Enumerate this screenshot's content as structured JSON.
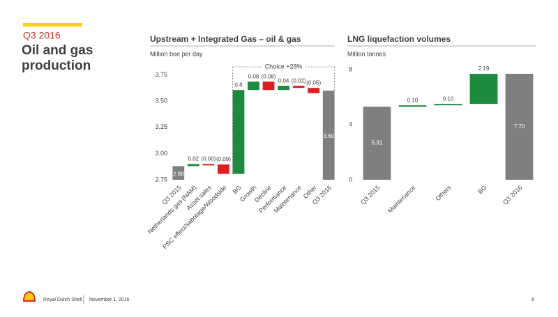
{
  "header": {
    "kicker": "Q3 2016",
    "title": "Oil and gas production"
  },
  "footer": {
    "company": "Royal Dutch Shell",
    "date": "November 1, 2016",
    "page": "6"
  },
  "chart_data": [
    {
      "type": "waterfall",
      "title": "Upstream + Integrated Gas – oil & gas",
      "subtitle": "Million boe per day",
      "categories": [
        "Q3 2015",
        "Netherlands gas (NAM)",
        "Asset sales",
        "PSC effect/sabotage/Woodside",
        "BG",
        "Growth",
        "Decline",
        "Performance",
        "Maintenance",
        "Other",
        "Q3 2016"
      ],
      "values": [
        2.88,
        0.02,
        -0.004,
        -0.09,
        0.8,
        0.08,
        -0.08,
        0.04,
        -0.02,
        -0.05,
        3.6
      ],
      "value_labels": [
        "2.88",
        "0.02",
        "(0.00)",
        "(0.09)",
        "0.8",
        "0.08",
        "(0.08)",
        "0.04",
        "(0.02)",
        "(0.05)",
        "3.60"
      ],
      "annotation": "Choice +28%",
      "ylim": [
        2.75,
        3.8
      ],
      "yticks": [
        2.75,
        {
          "value": 3,
          "label": "3.00"
        },
        3.25,
        {
          "value": 3.5,
          "label": "3.50"
        },
        3.75
      ],
      "total_color": "#7f7f7f",
      "increase_color": "#1d8a3e",
      "decrease_color": "#dd1d21"
    },
    {
      "type": "waterfall",
      "title": "LNG liquefaction volumes",
      "subtitle": "Million tonnes",
      "categories": [
        "Q3 2015",
        "Maintenance",
        "Others",
        "BG",
        "Q3 2016"
      ],
      "values": [
        5.31,
        0.1,
        0.1,
        2.19,
        7.7
      ],
      "value_labels": [
        "5.31",
        "0.10",
        "0.10",
        "2.19",
        "7.70"
      ],
      "ylim": [
        0,
        8
      ],
      "yticks": [
        0,
        4,
        8
      ],
      "total_color": "#7f7f7f",
      "increase_color": "#1d8a3e",
      "decrease_color": "#dd1d21"
    }
  ]
}
